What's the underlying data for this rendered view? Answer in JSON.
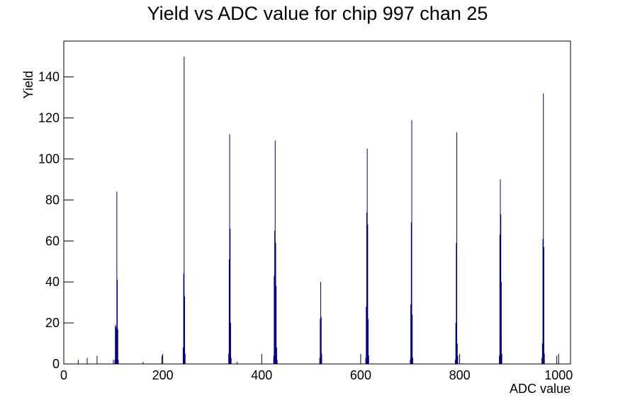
{
  "chart_data": {
    "type": "histogram",
    "title": "Yield vs ADC value for chip 997 chan 25",
    "x_label": "ADC value",
    "y_label": "Yield",
    "color": "#000080",
    "x": [
      29,
      47,
      67,
      100,
      103,
      104,
      105,
      106,
      107,
      108,
      109,
      110,
      160,
      198,
      241,
      242,
      243,
      244,
      245,
      333,
      334,
      335,
      336,
      337,
      338,
      350,
      424,
      425,
      426,
      427,
      428,
      429,
      430,
      431,
      517,
      518,
      519,
      520,
      521,
      610,
      611,
      612,
      613,
      614,
      615,
      616,
      700,
      701,
      702,
      703,
      704,
      705,
      791,
      792,
      793,
      794,
      795,
      796,
      880,
      881,
      882,
      883,
      884,
      885,
      966,
      967,
      968,
      969,
      970,
      971,
      996
    ],
    "values": [
      2,
      3,
      4,
      2,
      2,
      19,
      18,
      18,
      84,
      41,
      17,
      2,
      1,
      4,
      8,
      44,
      150,
      33,
      5,
      5,
      51,
      112,
      66,
      20,
      3,
      1,
      4,
      43,
      65,
      109,
      59,
      38,
      8,
      2,
      3,
      22,
      40,
      23,
      5,
      3,
      28,
      74,
      105,
      68,
      22,
      4,
      2,
      29,
      69,
      119,
      24,
      3,
      2,
      20,
      59,
      113,
      10,
      4,
      4,
      63,
      90,
      73,
      40,
      5,
      3,
      10,
      61,
      132,
      57,
      5,
      4
    ],
    "xlim": [
      0,
      1024
    ],
    "ylim": [
      0,
      157.5
    ],
    "xticks": [
      0,
      200,
      400,
      600,
      800,
      1000
    ],
    "yticks": [
      0,
      20,
      40,
      60,
      80,
      100,
      120,
      140
    ],
    "grid": false
  }
}
